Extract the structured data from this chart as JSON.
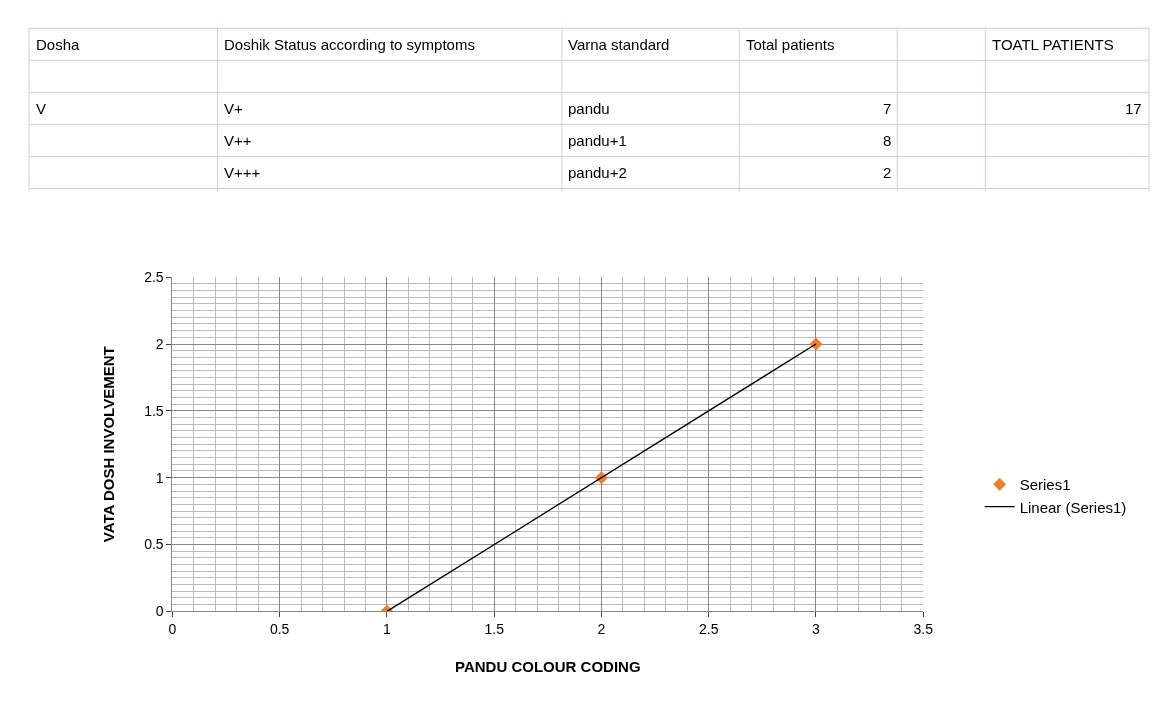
{
  "chart_data": [
    {
      "type": "other",
      "categories": [
        "Dosha",
        "Doshik Status according to symptoms",
        "Varna standard",
        "Total patients",
        null,
        "TOATL PATIENTS"
      ],
      "cells": [
        [
          null,
          null,
          null,
          null,
          null,
          null
        ],
        [
          "V",
          "V+",
          "pandu",
          "7",
          null,
          "17"
        ],
        [
          null,
          "V++",
          "pandu+1",
          "8",
          null,
          null
        ],
        [
          null,
          "V+++",
          "pandu+2",
          "2",
          null,
          null
        ]
      ]
    },
    {
      "type": "scatter",
      "xlabel": "PANDU COLOUR CODING",
      "ylabel": "VATA DOSH INVOLVEMENT",
      "xlim": [
        0,
        3.5
      ],
      "xticks": [
        0,
        0.5,
        1,
        1.5,
        2,
        2.5,
        3,
        3.5
      ],
      "ylim": [
        0,
        2.5
      ],
      "yticks": [
        0,
        0.5,
        1,
        1.5,
        2,
        2.5
      ],
      "grid": true,
      "legend": "right",
      "series": [
        {
          "name": "Series1",
          "color": "#f07f2c",
          "x": [
            1,
            2,
            3
          ],
          "values": [
            0,
            1,
            2
          ],
          "marker": "diamond"
        },
        {
          "name": "Linear (Series1)",
          "type": "line",
          "color": "#000000",
          "x": [
            1,
            3
          ],
          "values": [
            0,
            2
          ],
          "line_style": "solid",
          "marker": "none"
        }
      ]
    }
  ]
}
